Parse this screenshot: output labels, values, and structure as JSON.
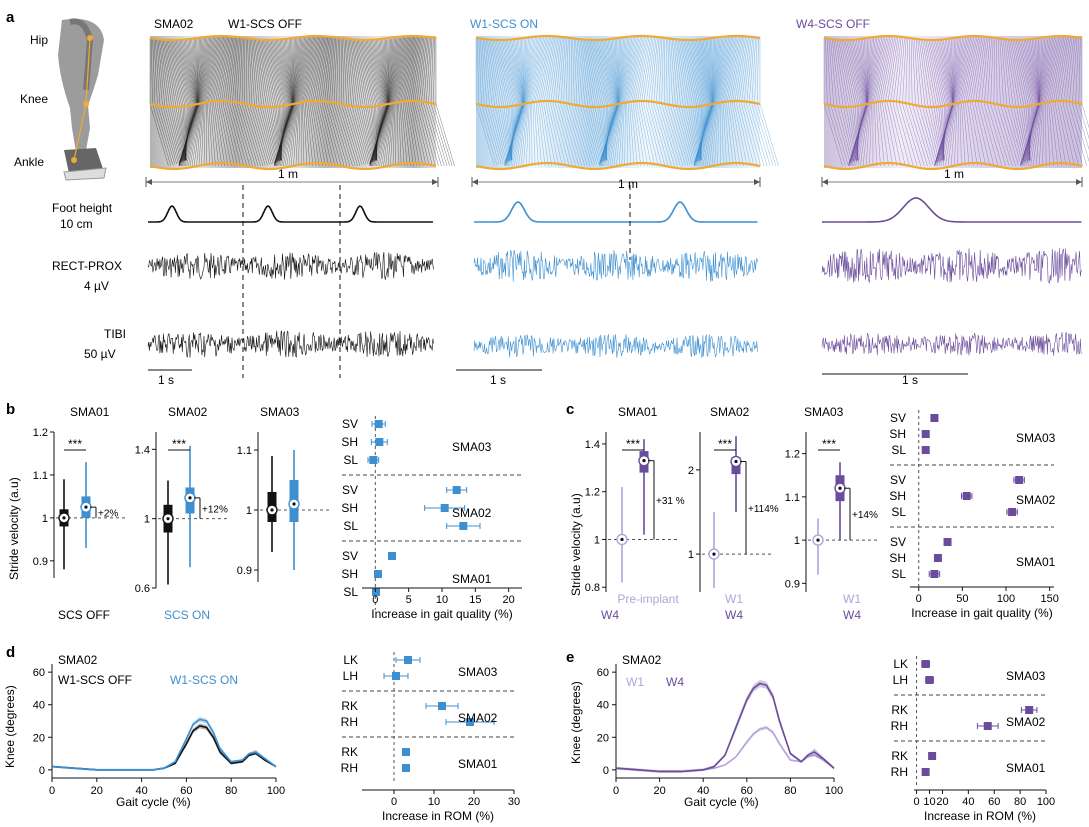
{
  "colors": {
    "off": "#111111",
    "on": "#3d8fd0",
    "w4": "#6a4c9c",
    "w1": "#b3a3d6",
    "hip": "#f0a934",
    "grey": "#888888"
  },
  "panel_a": {
    "letter": "a",
    "joints": [
      "Hip",
      "Knee",
      "Ankle"
    ],
    "subject": "SMA02",
    "conditions": [
      {
        "label": "W1-SCS OFF",
        "color": "#111111"
      },
      {
        "label": "W1-SCS ON",
        "color": "#3d8fd0"
      },
      {
        "label": "W4-SCS OFF",
        "color": "#6a4c9c"
      }
    ],
    "scale_m": "1 m",
    "traces": [
      {
        "name": "Foot height",
        "scale": "10 cm"
      },
      {
        "name": "RECT-PROX",
        "scale": "4 µV"
      },
      {
        "name": "TIBI",
        "scale": "50 µV"
      }
    ],
    "scale_s": "1 s"
  },
  "panel_b": {
    "letter": "b",
    "ylabel": "Stride velocity (a.u)",
    "legend_off": "SCS OFF",
    "legend_on": "SCS ON",
    "subjects": [
      {
        "name": "SMA01",
        "yticks": [
          "0.9",
          "1",
          "1.1",
          "1.2"
        ],
        "sig": "***",
        "pct": "+2%"
      },
      {
        "name": "SMA02",
        "yticks": [
          "0.6",
          "1",
          "1.4"
        ],
        "sig": "***",
        "pct": "+12%"
      },
      {
        "name": "SMA03",
        "yticks": [
          "0.9",
          "1",
          "1.1"
        ],
        "sig": "",
        "pct": ""
      }
    ],
    "xlabel": "Increase in gait quality (%)",
    "xticks": [
      "0",
      "5",
      "10",
      "15",
      "20"
    ]
  },
  "panel_c": {
    "letter": "c",
    "ylabel": "Stride velocity (a.u)",
    "subjects": [
      {
        "name": "SMA01",
        "yticks": [
          "0.8",
          "1",
          "1.2",
          "1.4"
        ],
        "sig": "***",
        "pct": "+31 %",
        "pre": "Pre-implant",
        "post": "W4"
      },
      {
        "name": "SMA02",
        "yticks": [
          "1",
          "2"
        ],
        "sig": "***",
        "pct": "+114%",
        "pre": "W1",
        "post": "W4"
      },
      {
        "name": "SMA03",
        "yticks": [
          "0.9",
          "1",
          "1.1",
          "1.2"
        ],
        "sig": "***",
        "pct": "+14%",
        "pre": "W1",
        "post": "W4"
      }
    ],
    "xlabel": "Increase in gait quality (%)",
    "xticks": [
      "0",
      "50",
      "100",
      "150"
    ]
  },
  "panel_d": {
    "letter": "d",
    "subject": "SMA02",
    "legend_off": "W1-SCS OFF",
    "legend_on": "W1-SCS ON",
    "ylabel": "Knee (degrees)",
    "xlabel": "Gait cycle (%)",
    "yticks": [
      "0",
      "20",
      "40",
      "60"
    ],
    "xticks": [
      "0",
      "20",
      "40",
      "60",
      "80",
      "100"
    ],
    "rom_xlabel": "Increase in ROM (%)",
    "rom_xticks": [
      "0",
      "10",
      "20",
      "30"
    ]
  },
  "panel_e": {
    "letter": "e",
    "subject": "SMA02",
    "legend_w1": "W1",
    "legend_w4": "W4",
    "ylabel": "Knee (degrees)",
    "xlabel": "Gait cycle (%)",
    "yticks": [
      "0",
      "20",
      "40",
      "60"
    ],
    "xticks": [
      "0",
      "20",
      "40",
      "60",
      "80",
      "100"
    ],
    "rom_xlabel": "Increase in ROM (%)",
    "rom_xticks": [
      "0",
      "10",
      "20",
      "40",
      "60",
      "80",
      "100"
    ]
  },
  "chart_data": [
    {
      "type": "box",
      "panel": "b",
      "name": "SMA01",
      "series": [
        {
          "name": "SCS OFF",
          "median": 1.0,
          "q1": 0.98,
          "q3": 1.02,
          "min": 0.88,
          "max": 1.09
        },
        {
          "name": "SCS ON",
          "median": 1.025,
          "q1": 1.0,
          "q3": 1.05,
          "min": 0.93,
          "max": 1.13
        }
      ]
    },
    {
      "type": "box",
      "panel": "b",
      "name": "SMA02",
      "series": [
        {
          "name": "SCS OFF",
          "median": 1.0,
          "q1": 0.92,
          "q3": 1.08,
          "min": 0.62,
          "max": 1.22
        },
        {
          "name": "SCS ON",
          "median": 1.12,
          "q1": 1.03,
          "q3": 1.18,
          "min": 0.72,
          "max": 1.42
        }
      ]
    },
    {
      "type": "box",
      "panel": "b",
      "name": "SMA03",
      "series": [
        {
          "name": "SCS OFF",
          "median": 1.0,
          "q1": 0.98,
          "q3": 1.03,
          "min": 0.93,
          "max": 1.09
        },
        {
          "name": "SCS ON",
          "median": 1.01,
          "q1": 0.98,
          "q3": 1.05,
          "min": 0.9,
          "max": 1.1
        }
      ]
    },
    {
      "type": "dot_errorbar",
      "panel": "b",
      "groups": [
        {
          "name": "SMA03",
          "items": [
            {
              "label": "SV",
              "value": 0.5,
              "err": 1.0
            },
            {
              "label": "SH",
              "value": 0.6,
              "err": 1.2
            },
            {
              "label": "SL",
              "value": -0.3,
              "err": 0.8
            }
          ]
        },
        {
          "name": "SMA02",
          "items": [
            {
              "label": "SV",
              "value": 12.2,
              "err": 1.5
            },
            {
              "label": "SH",
              "value": 10.4,
              "err": 3.0
            },
            {
              "label": "SL",
              "value": 13.2,
              "err": 2.5
            }
          ]
        },
        {
          "name": "SMA01",
          "items": [
            {
              "label": "SV",
              "value": 2.5,
              "err": 0.3
            },
            {
              "label": "SH",
              "value": 0.4,
              "err": 0.3
            },
            {
              "label": "SL",
              "value": 0.1,
              "err": 0.5
            }
          ]
        }
      ],
      "xlim": [
        -2,
        22
      ]
    },
    {
      "type": "box",
      "panel": "c",
      "name": "SMA01",
      "series": [
        {
          "name": "Pre-implant",
          "median": 1.0,
          "q1": 1.0,
          "q3": 1.0,
          "min": 0.82,
          "max": 1.22
        },
        {
          "name": "W4",
          "median": 1.33,
          "q1": 1.28,
          "q3": 1.37,
          "min": 1.02,
          "max": 1.42
        }
      ]
    },
    {
      "type": "box",
      "panel": "c",
      "name": "SMA02",
      "series": [
        {
          "name": "W1",
          "median": 1.0,
          "q1": 1.0,
          "q3": 1.0,
          "min": 0.6,
          "max": 1.5
        },
        {
          "name": "W4",
          "median": 2.1,
          "q1": 1.95,
          "q3": 2.15,
          "min": 1.5,
          "max": 2.4
        }
      ]
    },
    {
      "type": "box",
      "panel": "c",
      "name": "SMA03",
      "series": [
        {
          "name": "W1",
          "median": 1.0,
          "q1": 1.0,
          "q3": 1.0,
          "min": 0.92,
          "max": 1.05
        },
        {
          "name": "W4",
          "median": 1.12,
          "q1": 1.09,
          "q3": 1.15,
          "min": 1.0,
          "max": 1.18
        }
      ]
    },
    {
      "type": "dot_errorbar",
      "panel": "c",
      "groups": [
        {
          "name": "SMA03",
          "items": [
            {
              "label": "SV",
              "value": 18,
              "err": 2
            },
            {
              "label": "SH",
              "value": 8,
              "err": 2
            },
            {
              "label": "SL",
              "value": 8,
              "err": 2
            }
          ]
        },
        {
          "name": "SMA02",
          "items": [
            {
              "label": "SV",
              "value": 115,
              "err": 6
            },
            {
              "label": "SH",
              "value": 55,
              "err": 6
            },
            {
              "label": "SL",
              "value": 107,
              "err": 6
            }
          ]
        },
        {
          "name": "SMA01",
          "items": [
            {
              "label": "SV",
              "value": 33,
              "err": 3
            },
            {
              "label": "SH",
              "value": 22,
              "err": 3
            },
            {
              "label": "SL",
              "value": 18,
              "err": 6
            }
          ]
        }
      ],
      "xlim": [
        -10,
        155
      ]
    },
    {
      "type": "line",
      "panel": "d",
      "x": [
        0,
        10,
        20,
        30,
        40,
        45,
        50,
        55,
        60,
        63,
        66,
        69,
        72,
        75,
        80,
        85,
        88,
        91,
        95,
        100
      ],
      "series": [
        {
          "name": "W1-SCS OFF",
          "values": [
            2,
            1,
            0,
            0,
            0,
            0,
            1,
            4,
            16,
            24,
            27,
            26,
            20,
            11,
            4,
            5,
            9,
            10,
            6,
            2
          ]
        },
        {
          "name": "W1-SCS ON",
          "values": [
            2,
            1,
            0,
            0,
            0,
            0,
            1,
            5,
            19,
            28,
            31,
            30,
            23,
            13,
            5,
            6,
            10,
            11,
            7,
            2
          ]
        }
      ],
      "ylim": [
        -5,
        65
      ],
      "xlim": [
        0,
        100
      ]
    },
    {
      "type": "dot_errorbar",
      "panel": "d",
      "groups": [
        {
          "name": "SMA03",
          "items": [
            {
              "label": "LK",
              "value": 3.5,
              "err": 3
            },
            {
              "label": "LH",
              "value": 0.5,
              "err": 3
            }
          ]
        },
        {
          "name": "SMA02",
          "items": [
            {
              "label": "RK",
              "value": 12,
              "err": 4
            },
            {
              "label": "RH",
              "value": 19,
              "err": 6
            }
          ]
        },
        {
          "name": "SMA01",
          "items": [
            {
              "label": "RK",
              "value": 3,
              "err": 0.8
            },
            {
              "label": "RH",
              "value": 3,
              "err": 0.8
            }
          ]
        }
      ],
      "xlim": [
        -8,
        30
      ]
    },
    {
      "type": "line",
      "panel": "e",
      "x": [
        0,
        10,
        20,
        30,
        40,
        45,
        50,
        55,
        60,
        63,
        66,
        69,
        72,
        75,
        80,
        85,
        88,
        91,
        95,
        100
      ],
      "series": [
        {
          "name": "W1",
          "values": [
            1,
            0,
            -1,
            -1,
            0,
            1,
            3,
            8,
            17,
            22,
            25,
            26,
            23,
            16,
            6,
            5,
            8,
            9,
            6,
            1
          ]
        },
        {
          "name": "W4",
          "values": [
            1,
            0,
            -1,
            -1,
            0,
            2,
            9,
            26,
            43,
            50,
            53,
            52,
            45,
            30,
            10,
            5,
            9,
            11,
            7,
            1
          ]
        }
      ],
      "ylim": [
        -5,
        65
      ],
      "xlim": [
        0,
        100
      ]
    },
    {
      "type": "dot_errorbar",
      "panel": "e",
      "groups": [
        {
          "name": "SMA03",
          "items": [
            {
              "label": "LK",
              "value": 7,
              "err": 3
            },
            {
              "label": "LH",
              "value": 10,
              "err": 3
            }
          ]
        },
        {
          "name": "SMA02",
          "items": [
            {
              "label": "RK",
              "value": 87,
              "err": 6
            },
            {
              "label": "RH",
              "value": 55,
              "err": 8
            }
          ]
        },
        {
          "name": "SMA01",
          "items": [
            {
              "label": "RK",
              "value": 12,
              "err": 2
            },
            {
              "label": "RH",
              "value": 7,
              "err": 2
            }
          ]
        }
      ],
      "xlim": [
        -2,
        100
      ]
    }
  ]
}
